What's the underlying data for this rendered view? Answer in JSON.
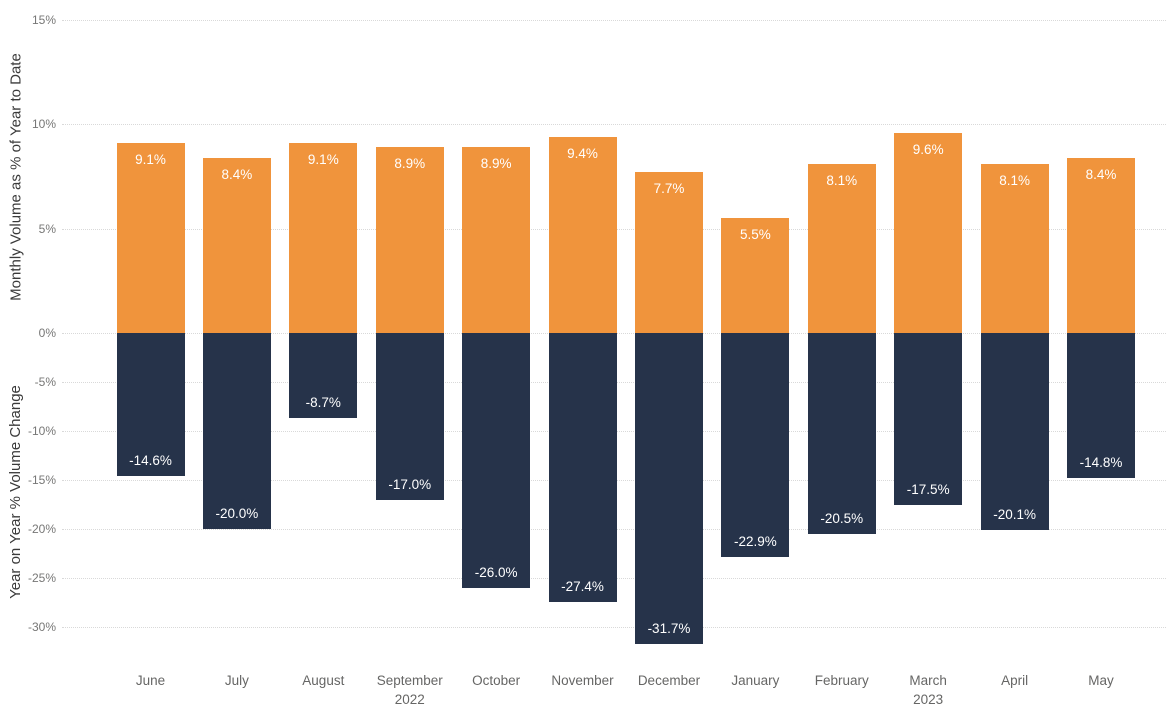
{
  "chart_data": {
    "type": "bar",
    "subtype": "dual-axis-column",
    "title": "",
    "categories": [
      {
        "label": "June",
        "sub": ""
      },
      {
        "label": "July",
        "sub": ""
      },
      {
        "label": "August",
        "sub": ""
      },
      {
        "label": "September",
        "sub": "2022"
      },
      {
        "label": "October",
        "sub": ""
      },
      {
        "label": "November",
        "sub": ""
      },
      {
        "label": "December",
        "sub": ""
      },
      {
        "label": "January",
        "sub": ""
      },
      {
        "label": "February",
        "sub": ""
      },
      {
        "label": "March",
        "sub": "2023"
      },
      {
        "label": "April",
        "sub": ""
      },
      {
        "label": "May",
        "sub": ""
      }
    ],
    "series": [
      {
        "name": "Monthly Volume as % of Year to Date",
        "color": "#F0943C",
        "values": [
          9.1,
          8.4,
          9.1,
          8.9,
          8.9,
          9.4,
          7.7,
          5.5,
          8.1,
          9.6,
          8.1,
          8.4
        ]
      },
      {
        "name": "Year on Year % Volume Change",
        "color": "#26334A",
        "values": [
          -14.6,
          -20.0,
          -8.7,
          -17.0,
          -26.0,
          -27.4,
          -31.7,
          -22.9,
          -20.5,
          -17.5,
          -20.1,
          -14.8
        ]
      }
    ],
    "y_axis_top": {
      "label": "Monthly Volume as % of Year to Date",
      "ticks": [
        15,
        10,
        5,
        0
      ],
      "range": [
        0,
        15
      ]
    },
    "y_axis_bottom": {
      "label": "Year on Year % Volume Change",
      "ticks": [
        -5,
        -10,
        -15,
        -20,
        -25,
        -30
      ],
      "range": [
        -32.5,
        0
      ]
    },
    "grid": "dotted",
    "legend": "none",
    "data_label_color": "#FFFFFF",
    "tick_label_color": "#777776",
    "category_label_color": "#666665",
    "axis_title_color": "#3A3A3A",
    "gridline_color": "#D9D9D9",
    "background_color": "#FFFFFF"
  }
}
